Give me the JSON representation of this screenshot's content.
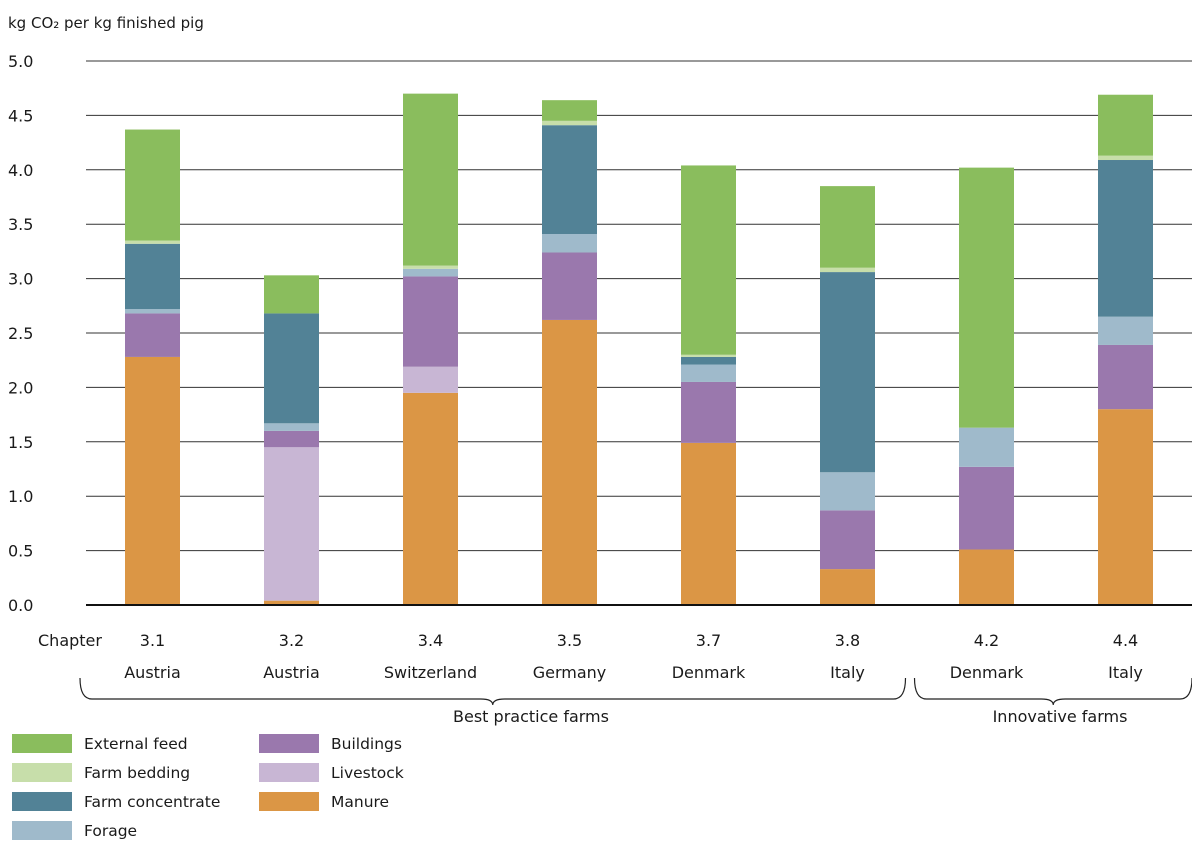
{
  "chart_data": {
    "type": "bar",
    "stacked": true,
    "ylabel": "kg CO₂ per kg finished pig",
    "ylim": [
      0,
      5.0
    ],
    "yticks": [
      "0.0",
      "0.5",
      "1.0",
      "1.5",
      "2.0",
      "2.5",
      "3.0",
      "3.5",
      "4.0",
      "4.5",
      "5.0"
    ],
    "category_row_label": "Chapter",
    "categories": [
      "3.1",
      "3.2",
      "3.4",
      "3.5",
      "3.7",
      "3.8",
      "4.2",
      "4.4"
    ],
    "countries": [
      "Austria",
      "Austria",
      "Switzerland",
      "Germany",
      "Denmark",
      "Italy",
      "Denmark",
      "Italy"
    ],
    "groups": [
      {
        "label": "Best practice farms",
        "start": 0,
        "end": 5
      },
      {
        "label": "Innovative farms",
        "start": 6,
        "end": 7
      }
    ],
    "series": [
      {
        "name": "Manure",
        "color": "#db9645",
        "values": [
          2.28,
          0.04,
          1.95,
          2.62,
          1.49,
          0.33,
          0.51,
          1.8
        ]
      },
      {
        "name": "Livestock",
        "color": "#c8b6d4",
        "values": [
          0.0,
          1.41,
          0.24,
          0.0,
          0.0,
          0.0,
          0.0,
          0.0
        ]
      },
      {
        "name": "Buildings",
        "color": "#9a78ad",
        "values": [
          0.4,
          0.15,
          0.83,
          0.62,
          0.56,
          0.54,
          0.76,
          0.59
        ]
      },
      {
        "name": "Forage",
        "color": "#9fbacb",
        "values": [
          0.04,
          0.07,
          0.07,
          0.17,
          0.16,
          0.35,
          0.36,
          0.26
        ]
      },
      {
        "name": "Farm concentrate",
        "color": "#528296",
        "values": [
          0.6,
          1.01,
          0.0,
          1.0,
          0.07,
          1.84,
          0.0,
          1.44
        ]
      },
      {
        "name": "Farm bedding",
        "color": "#c7deaa",
        "values": [
          0.03,
          0.0,
          0.03,
          0.04,
          0.02,
          0.04,
          0.0,
          0.04
        ]
      },
      {
        "name": "External feed",
        "color": "#8abd5d",
        "values": [
          1.02,
          0.35,
          1.58,
          0.19,
          1.74,
          0.75,
          2.39,
          0.56
        ]
      }
    ],
    "legend": {
      "placement": "bottom-left",
      "order": [
        "External feed",
        "Farm bedding",
        "Farm concentrate",
        "Forage",
        "Buildings",
        "Livestock",
        "Manure"
      ]
    }
  }
}
